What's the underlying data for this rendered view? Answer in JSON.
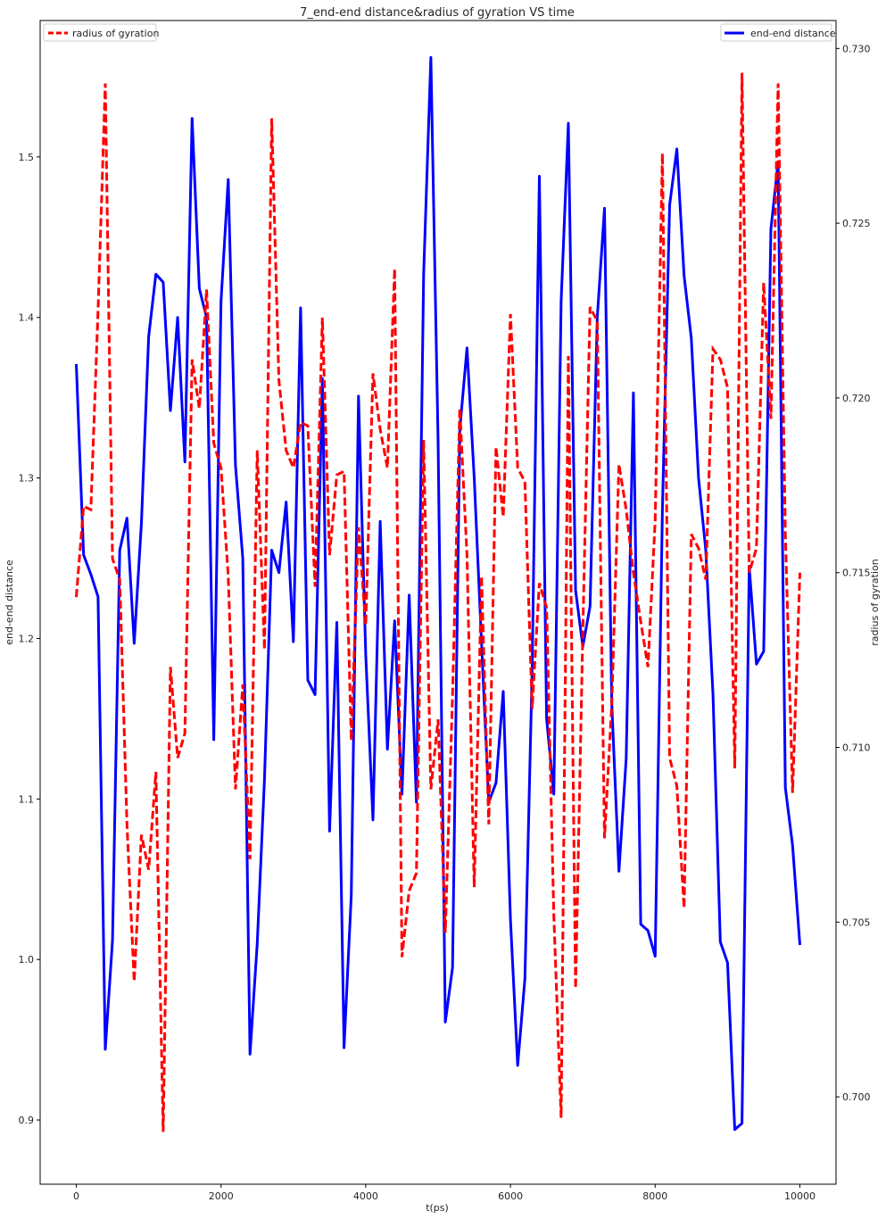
{
  "chart_data": {
    "type": "line",
    "title": "7_end-end distance&radius of gyration VS time",
    "xlabel": "t(ps)",
    "ylabel_left": "end-end distance",
    "ylabel_right": "radius of gyration",
    "xlim": [
      -500,
      10500
    ],
    "ylim_left": [
      0.86,
      1.585
    ],
    "ylim_right": [
      0.6975,
      0.7308
    ],
    "x_ticks": [
      0,
      2000,
      4000,
      6000,
      8000,
      10000
    ],
    "y_ticks_left": [
      0.9,
      1.0,
      1.1,
      1.2,
      1.3,
      1.4,
      1.5
    ],
    "y_ticks_right": [
      0.7,
      0.705,
      0.71,
      0.715,
      0.72,
      0.725,
      0.73
    ],
    "x_tick_labels": [
      "0",
      "2000",
      "4000",
      "6000",
      "8000",
      "10000"
    ],
    "y_tick_labels_left": [
      "0.9",
      "1.0",
      "1.1",
      "1.2",
      "1.3",
      "1.4",
      "1.5"
    ],
    "y_tick_labels_right": [
      "0.700",
      "0.705",
      "0.710",
      "0.715",
      "0.720",
      "0.725",
      "0.730"
    ],
    "x": [
      0,
      100,
      200,
      300,
      400,
      500,
      600,
      700,
      800,
      900,
      1000,
      1100,
      1200,
      1300,
      1400,
      1500,
      1600,
      1700,
      1800,
      1900,
      2000,
      2100,
      2200,
      2300,
      2400,
      2500,
      2600,
      2700,
      2800,
      2900,
      3000,
      3100,
      3200,
      3300,
      3400,
      3500,
      3600,
      3700,
      3800,
      3900,
      4000,
      4100,
      4200,
      4300,
      4400,
      4500,
      4600,
      4700,
      4800,
      4900,
      5000,
      5100,
      5200,
      5300,
      5400,
      5500,
      5600,
      5700,
      5800,
      5900,
      6000,
      6100,
      6200,
      6300,
      6400,
      6500,
      6600,
      6700,
      6800,
      6900,
      7000,
      7100,
      7200,
      7300,
      7400,
      7500,
      7600,
      7700,
      7800,
      7900,
      8000,
      8100,
      8200,
      8300,
      8400,
      8500,
      8600,
      8700,
      8800,
      8900,
      9000,
      9100,
      9200,
      9300,
      9400,
      9500,
      9600,
      9700,
      9800,
      9900,
      10000
    ],
    "series": [
      {
        "name": "end-end distance",
        "axis": "left",
        "color": "#0000ff",
        "style": "solid",
        "values": [
          1.371,
          1.252,
          1.24,
          1.226,
          0.944,
          1.012,
          1.255,
          1.275,
          1.197,
          1.272,
          1.388,
          1.427,
          1.422,
          1.342,
          1.4,
          1.31,
          1.524,
          1.418,
          1.4,
          1.137,
          1.41,
          1.486,
          1.308,
          1.25,
          0.941,
          1.01,
          1.112,
          1.255,
          1.241,
          1.285,
          1.198,
          1.406,
          1.174,
          1.165,
          1.362,
          1.08,
          1.21,
          0.945,
          1.04,
          1.351,
          1.19,
          1.087,
          1.273,
          1.131,
          1.211,
          1.103,
          1.227,
          1.098,
          1.427,
          1.562,
          1.323,
          0.961,
          0.995,
          1.33,
          1.381,
          1.3,
          1.197,
          1.098,
          1.11,
          1.167,
          1.025,
          0.934,
          0.988,
          1.18,
          1.488,
          1.15,
          1.103,
          1.41,
          1.521,
          1.23,
          1.195,
          1.22,
          1.4,
          1.468,
          1.16,
          1.055,
          1.125,
          1.353,
          1.022,
          1.018,
          1.002,
          1.28,
          1.47,
          1.505,
          1.426,
          1.387,
          1.3,
          1.255,
          1.165,
          1.011,
          0.998,
          0.894,
          0.898,
          1.245,
          1.184,
          1.192,
          1.455,
          1.497,
          1.107,
          1.071,
          1.009
        ]
      },
      {
        "name": "radius of gyration",
        "axis": "right",
        "color": "#ff0000",
        "style": "dashed",
        "values": [
          0.7143,
          0.7169,
          0.7168,
          0.7225,
          0.729,
          0.7154,
          0.7148,
          0.7078,
          0.7033,
          0.7075,
          0.7065,
          0.7093,
          0.699,
          0.7123,
          0.7097,
          0.7104,
          0.7211,
          0.7197,
          0.7231,
          0.7187,
          0.718,
          0.7149,
          0.7088,
          0.7118,
          0.7068,
          0.7185,
          0.7128,
          0.728,
          0.7205,
          0.7185,
          0.718,
          0.7193,
          0.7192,
          0.7146,
          0.7223,
          0.7155,
          0.7178,
          0.7179,
          0.7102,
          0.7163,
          0.7135,
          0.7207,
          0.7191,
          0.718,
          0.7237,
          0.704,
          0.7059,
          0.7064,
          0.7188,
          0.7088,
          0.7108,
          0.7047,
          0.7115,
          0.7197,
          0.7155,
          0.706,
          0.7149,
          0.7078,
          0.7186,
          0.7166,
          0.7224,
          0.718,
          0.7176,
          0.7111,
          0.7147,
          0.714,
          0.7052,
          0.6994,
          0.7212,
          0.7031,
          0.7133,
          0.7226,
          0.7222,
          0.7074,
          0.7112,
          0.7181,
          0.7168,
          0.715,
          0.7136,
          0.7123,
          0.7165,
          0.727,
          0.7097,
          0.7089,
          0.7054,
          0.7161,
          0.7157,
          0.7148,
          0.7214,
          0.7211,
          0.7203,
          0.7094,
          0.7293,
          0.715,
          0.7157,
          0.7233,
          0.7194,
          0.729,
          0.7161,
          0.7087,
          0.715
        ]
      }
    ],
    "legend_left": {
      "label": "radius of gyration",
      "placement": "top-left"
    },
    "legend_right": {
      "label": "end-end distance",
      "placement": "top-right"
    },
    "grid": false
  }
}
